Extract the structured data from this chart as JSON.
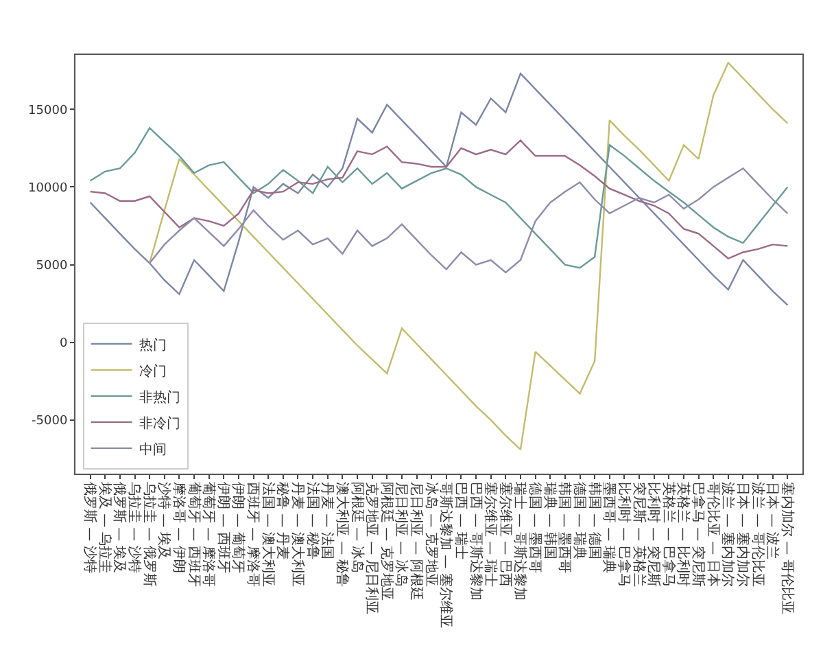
{
  "chart_data": {
    "type": "line",
    "categories": [
      "俄罗斯 — 沙特",
      "埃及 — 乌拉圭",
      "俄罗斯 — 埃及",
      "乌拉圭 — 沙特",
      "乌拉圭 — 俄罗斯",
      "沙特 — 埃及",
      "摩洛哥 — 伊朗",
      "葡萄牙 — 西班牙",
      "葡萄牙 — 摩洛哥",
      "伊朗 — 西班牙",
      "伊朗 — 葡萄牙",
      "西班牙 — 摩洛哥",
      "法国 — 澳大利亚",
      "秘鲁 — 丹麦",
      "丹麦 — 澳大利亚",
      "法国 — 秘鲁",
      "丹麦 — 法国",
      "澳大利亚 — 秘鲁",
      "阿根廷 — 冰岛",
      "克罗地亚 — 尼日利亚",
      "阿根廷 — 克罗地亚",
      "尼日利亚 — 冰岛",
      "尼日利亚 — 阿根廷",
      "冰岛 — 克罗地亚",
      "哥斯达黎加 — 塞尔维亚",
      "巴西 — 瑞士",
      "巴西 — 哥斯达黎加",
      "塞尔维亚 — 瑞士",
      "塞尔维亚 — 巴西",
      "瑞士 — 哥斯达黎加",
      "德国 — 墨西哥",
      "瑞典 — 韩国",
      "韩国 — 墨西哥",
      "德国 — 瑞典",
      "韩国 — 德国",
      "墨西哥 — 瑞典",
      "比利时 — 巴拿马",
      "突尼斯 — 英格兰",
      "比利时 — 突尼斯",
      "英格兰 — 巴拿马",
      "英格兰 — 比利时",
      "巴拿马 — 突尼斯",
      "哥伦比亚 — 日本",
      "波兰 — 塞内加尔",
      "日本 — 塞内加尔",
      "波兰 — 哥伦比亚",
      "日本 — 波兰",
      "塞内加尔 — 哥伦比亚"
    ],
    "series": [
      {
        "name": "热门",
        "color": "#7a86a6",
        "values": [
          9000,
          8000,
          7000,
          6000,
          5100,
          4000,
          3100,
          5300,
          4300,
          3300,
          6500,
          10000,
          9300,
          10200,
          9600,
          10800,
          10000,
          11200,
          14400,
          13500,
          15300,
          14300,
          13300,
          12300,
          11300,
          14800,
          14000,
          15700,
          14800,
          17300,
          16300,
          15300,
          14300,
          13300,
          12300,
          11300,
          10300,
          9300,
          8300,
          7300,
          6300,
          5300,
          4300,
          3400,
          5300,
          4300,
          3300,
          2400
        ]
      },
      {
        "name": "冷门",
        "color": "#c2bc6e",
        "values": [
          null,
          null,
          null,
          null,
          5100,
          8500,
          11800,
          10800,
          9800,
          8800,
          7800,
          6800,
          5800,
          4800,
          3800,
          2800,
          1800,
          800,
          -200,
          -1100,
          -2000,
          900,
          -100,
          -1100,
          -2100,
          -3100,
          -4100,
          -5000,
          -6000,
          -6900,
          -600,
          -1500,
          -2400,
          -3300,
          -1200,
          14300,
          13300,
          12400,
          11400,
          10400,
          12700,
          11800,
          15900,
          18000,
          17000,
          16000,
          15000,
          14100
        ]
      },
      {
        "name": "非热门",
        "color": "#6b9a98",
        "values": [
          10400,
          11000,
          11200,
          12200,
          13800,
          12900,
          12000,
          10900,
          11400,
          11600,
          10600,
          9600,
          10200,
          11100,
          10400,
          9600,
          11300,
          10300,
          11200,
          10200,
          10900,
          9900,
          10400,
          10900,
          11200,
          10800,
          10000,
          9500,
          9000,
          8000,
          7000,
          6000,
          5000,
          4800,
          5500,
          12700,
          12000,
          11200,
          10400,
          9700,
          9000,
          8200,
          7400,
          6800,
          6400,
          7600,
          8800,
          10000
        ]
      },
      {
        "name": "非冷门",
        "color": "#9c6b86",
        "values": [
          9700,
          9600,
          9100,
          9100,
          9400,
          8400,
          7400,
          8000,
          7800,
          7500,
          8300,
          9800,
          9600,
          9700,
          10300,
          10200,
          10500,
          10600,
          12300,
          12100,
          12600,
          11600,
          11500,
          11300,
          11300,
          12500,
          12100,
          12400,
          12100,
          13000,
          12000,
          12000,
          12000,
          11400,
          10700,
          9900,
          9500,
          9100,
          8800,
          8300,
          7300,
          7000,
          6200,
          5400,
          5800,
          6000,
          6300,
          6200
        ]
      },
      {
        "name": "中间",
        "color": "#8c8cab",
        "values": [
          null,
          null,
          null,
          null,
          5100,
          6300,
          7200,
          8000,
          7100,
          6200,
          7300,
          8500,
          7500,
          6600,
          7200,
          6300,
          6700,
          5700,
          7200,
          6200,
          6700,
          7600,
          6600,
          5600,
          4700,
          5800,
          5000,
          5300,
          4500,
          5300,
          7800,
          9000,
          9700,
          10300,
          9200,
          8300,
          8800,
          9300,
          9000,
          9500,
          8600,
          9200,
          10000,
          10600,
          11200,
          10200,
          9200,
          8300
        ]
      }
    ],
    "ylim": [
      -8450,
      18500
    ],
    "yticks": [
      -5000,
      0,
      5000,
      10000,
      15000
    ],
    "legend": "bottom left",
    "marker": "none",
    "line_style": "solid"
  }
}
